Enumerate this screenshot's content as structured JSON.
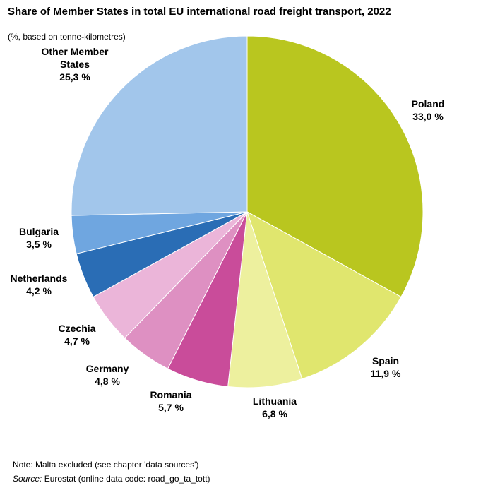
{
  "chart_data": {
    "type": "pie",
    "title": "Share of Member States in total EU international road freight transport, 2022",
    "subtitle": "(%, based on tonne-kilometres)",
    "unit": "%",
    "slices": [
      {
        "name": "Poland",
        "value": 33.0,
        "value_label": "33,0 %",
        "color": "#b9c61f"
      },
      {
        "name": "Spain",
        "value": 11.9,
        "value_label": "11,9 %",
        "color": "#e0e66e"
      },
      {
        "name": "Lithuania",
        "value": 6.8,
        "value_label": "6,8 %",
        "color": "#edf09e"
      },
      {
        "name": "Romania",
        "value": 5.7,
        "value_label": "5,7 %",
        "color": "#c94c9a"
      },
      {
        "name": "Germany",
        "value": 4.8,
        "value_label": "4,8 %",
        "color": "#de90c2"
      },
      {
        "name": "Czechia",
        "value": 4.7,
        "value_label": "4,7 %",
        "color": "#ebb5d9"
      },
      {
        "name": "Netherlands",
        "value": 4.2,
        "value_label": "4,2 %",
        "color": "#2a6db5"
      },
      {
        "name": "Bulgaria",
        "value": 3.5,
        "value_label": "3,5 %",
        "color": "#6fa6e0"
      },
      {
        "name": "Other Member States",
        "value": 25.3,
        "value_label": "25,3 %",
        "color": "#a2c6eb"
      }
    ]
  },
  "footer": {
    "note": "Note: Malta excluded (see chapter 'data sources')",
    "source_label": "Source:",
    "source_text": " Eurostat (online data code: road_go_ta_tott)"
  }
}
